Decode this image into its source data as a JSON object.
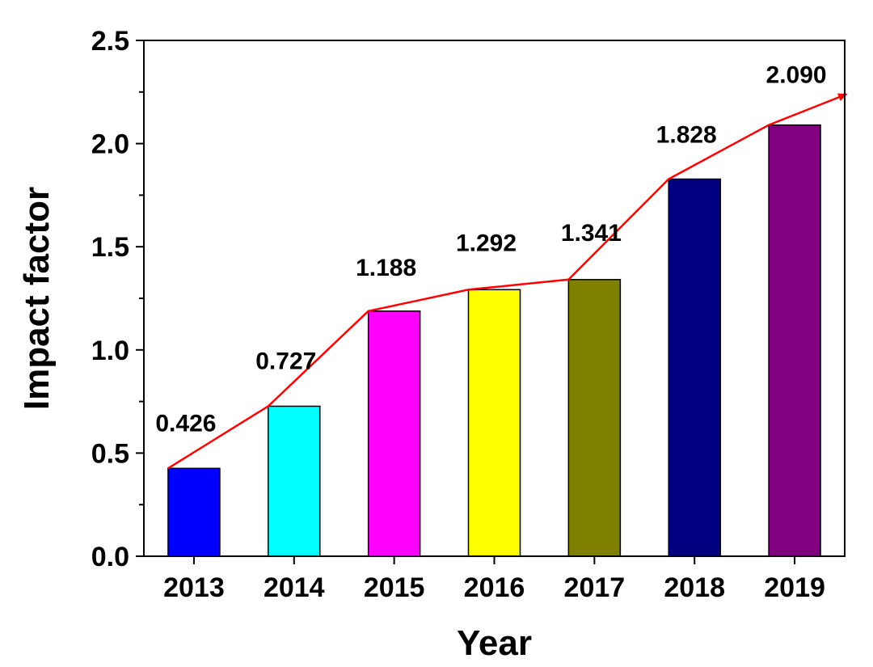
{
  "chart_data": {
    "type": "bar",
    "categories": [
      "2013",
      "2014",
      "2015",
      "2016",
      "2017",
      "2018",
      "2019"
    ],
    "values": [
      0.426,
      0.727,
      1.188,
      1.292,
      1.341,
      1.828,
      2.09
    ],
    "data_labels": [
      "0.426",
      "0.727",
      "1.188",
      "1.292",
      "1.341",
      "1.828",
      "2.090"
    ],
    "bar_colors": [
      "#0000ff",
      "#00ffff",
      "#ff00ff",
      "#ffff00",
      "#808000",
      "#000080",
      "#800080"
    ],
    "trend_line_color": "#ff0000",
    "trend_line_arrow": true,
    "xlabel": "Year",
    "ylabel": "Impact factor",
    "ylim": [
      0,
      2.5
    ],
    "yticks": [
      "0.0",
      "0.5",
      "1.0",
      "1.5",
      "2.0",
      "2.5"
    ],
    "grid": false,
    "legend": "none"
  }
}
